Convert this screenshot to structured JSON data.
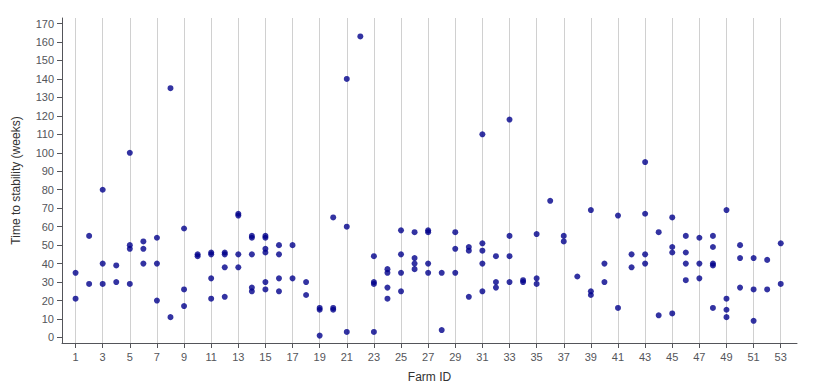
{
  "chart_data": {
    "type": "scatter",
    "xlabel": "Farm ID",
    "ylabel": "Time to stability (weeks)",
    "color": "#00008B",
    "grid": "x",
    "xlim": [
      0.0,
      54.2
    ],
    "xticks": [
      1,
      3,
      5,
      7,
      9,
      11,
      13,
      15,
      17,
      19,
      21,
      23,
      25,
      27,
      29,
      31,
      33,
      35,
      37,
      39,
      41,
      43,
      45,
      47,
      49,
      51,
      53
    ],
    "ylim": [
      -3,
      173
    ],
    "yticks": [
      0,
      10,
      20,
      30,
      40,
      50,
      60,
      70,
      80,
      90,
      100,
      110,
      120,
      130,
      140,
      150,
      160,
      170
    ],
    "x": [
      1,
      2,
      3,
      4,
      5,
      6,
      7,
      8,
      9,
      10,
      11,
      12,
      13,
      14,
      15,
      16,
      17,
      18,
      19,
      20,
      21,
      22,
      23,
      24,
      25,
      26,
      27,
      28,
      29,
      30,
      31,
      32,
      33,
      34,
      35,
      36,
      37,
      38,
      39,
      40,
      41,
      42,
      43,
      44,
      45,
      46,
      47,
      48,
      49,
      50,
      51,
      52,
      53
    ],
    "values": [
      [
        21,
        35
      ],
      [
        29,
        55
      ],
      [
        29,
        40,
        80
      ],
      [
        39,
        30
      ],
      [
        29,
        48,
        50,
        100
      ],
      [
        40,
        48,
        52
      ],
      [
        20,
        40,
        54
      ],
      [
        11,
        135
      ],
      [
        17,
        26,
        59
      ],
      [
        44,
        45
      ],
      [
        21,
        32,
        45,
        46
      ],
      [
        22,
        38,
        45,
        46
      ],
      [
        38,
        45,
        66,
        67
      ],
      [
        25,
        27,
        45,
        54,
        55
      ],
      [
        26,
        30,
        46,
        48,
        54,
        55
      ],
      [
        25,
        32,
        45,
        50
      ],
      [
        32,
        50
      ],
      [
        23,
        30
      ],
      [
        1,
        15,
        16
      ],
      [
        15,
        16,
        65
      ],
      [
        3,
        60,
        140
      ],
      [
        163
      ],
      [
        3,
        29,
        30,
        44
      ],
      [
        21,
        27,
        35,
        37
      ],
      [
        25,
        35,
        45,
        58
      ],
      [
        37,
        40,
        43,
        57
      ],
      [
        35,
        40,
        57,
        58
      ],
      [
        4,
        35
      ],
      [
        35,
        48,
        57
      ],
      [
        22,
        47,
        49
      ],
      [
        25,
        40,
        47,
        51,
        110
      ],
      [
        27,
        30,
        44
      ],
      [
        30,
        44,
        55,
        118
      ],
      [
        30,
        31
      ],
      [
        29,
        32,
        56
      ],
      [
        74
      ],
      [
        52,
        55
      ],
      [
        33
      ],
      [
        23,
        25,
        69
      ],
      [
        30,
        40
      ],
      [
        16,
        66
      ],
      [
        38,
        45
      ],
      [
        40,
        45,
        67,
        95
      ],
      [
        12,
        57
      ],
      [
        13,
        46,
        49,
        65
      ],
      [
        31,
        40,
        46,
        55
      ],
      [
        32,
        40,
        54
      ],
      [
        16,
        39,
        40,
        49,
        55
      ],
      [
        11,
        15,
        21,
        69
      ],
      [
        27,
        43,
        50
      ],
      [
        9,
        26,
        43
      ],
      [
        26,
        42
      ],
      [
        29,
        51
      ]
    ]
  }
}
